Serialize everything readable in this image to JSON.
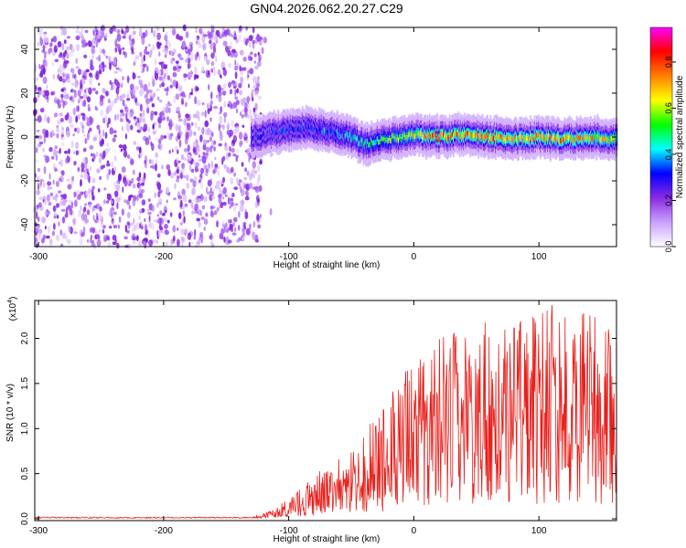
{
  "chart_data": [
    {
      "type": "heatmap",
      "title": "GN04.2026.062.20.27.C29",
      "xlabel": "Height of straight line (km)",
      "ylabel": "Frequency (Hz)",
      "xlim": [
        -303,
        162
      ],
      "ylim": [
        -50,
        50
      ],
      "xticks": [
        -300,
        -200,
        -100,
        0,
        100
      ],
      "yticks": [
        -40,
        -20,
        0,
        20,
        40
      ],
      "noise_region_x": [
        -303,
        -122
      ],
      "signal_track": {
        "x": [
          -130,
          -110,
          -90,
          -70,
          -50,
          -40,
          -30,
          -20,
          0,
          20,
          40,
          60,
          80,
          100,
          120,
          140,
          160
        ],
        "center_hz": [
          0,
          2,
          4,
          3,
          0,
          -3,
          -2,
          -1,
          1,
          0,
          1,
          0,
          -1,
          0,
          -1,
          0,
          -1
        ],
        "peak_amplitude": [
          0.3,
          0.35,
          0.35,
          0.4,
          0.45,
          0.5,
          0.55,
          0.6,
          0.7,
          0.85,
          0.8,
          0.85,
          0.75,
          0.8,
          0.8,
          0.75,
          0.7
        ]
      },
      "colorbar": {
        "label": "Normalized spectral amplitude",
        "ticks": [
          0.0,
          0.2,
          0.4,
          0.6,
          0.8
        ],
        "range": [
          0,
          0.95
        ],
        "colormap": [
          "#ffffff",
          "#c9a0ff",
          "#8a2be2",
          "#0000ff",
          "#00ffff",
          "#00ff00",
          "#ffff00",
          "#ff8000",
          "#ff0000",
          "#ff00ff"
        ]
      }
    },
    {
      "type": "line",
      "xlabel": "Height of straight line (km)",
      "ylabel": "SNR (10 * v/v)",
      "y_scale_label": "(x10",
      "y_scale_exponent": "4",
      "y_scale_suffix": ")",
      "xlim": [
        -303,
        162
      ],
      "ylim": [
        -0.02,
        2.42
      ],
      "xticks": [
        -300,
        -200,
        -100,
        0,
        100
      ],
      "yticks": [
        0.0,
        0.5,
        1.0,
        1.5,
        2.0
      ],
      "color": "#e8201c",
      "envelope": {
        "x": [
          -303,
          -130,
          -110,
          -90,
          -70,
          -50,
          -30,
          -10,
          0,
          20,
          40,
          60,
          80,
          100,
          120,
          140,
          162
        ],
        "mean": [
          0.01,
          0.01,
          0.05,
          0.15,
          0.25,
          0.35,
          0.5,
          0.65,
          0.8,
          0.95,
          1.05,
          1.1,
          1.1,
          1.05,
          1.05,
          1.0,
          1.0
        ],
        "peak": [
          0.02,
          0.02,
          0.12,
          0.35,
          0.6,
          0.75,
          1.2,
          1.6,
          1.75,
          2.0,
          2.1,
          2.2,
          2.15,
          2.3,
          2.45,
          2.3,
          2.1
        ]
      }
    }
  ]
}
